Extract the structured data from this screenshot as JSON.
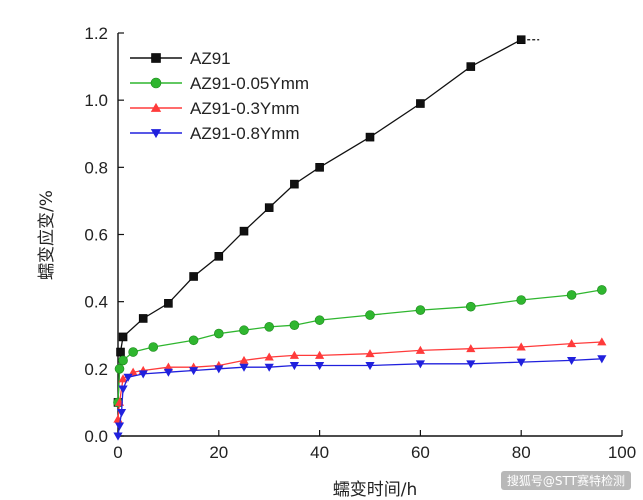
{
  "chart_data": {
    "type": "line",
    "title": "",
    "xlabel": "蠕变时间/h",
    "ylabel": "蠕变应变/%",
    "xlim": [
      0,
      100
    ],
    "ylim": [
      0,
      1.2
    ],
    "x_ticks": [
      0,
      20,
      40,
      60,
      80,
      100
    ],
    "y_ticks": [
      0.0,
      0.2,
      0.4,
      0.6,
      0.8,
      1.0,
      1.2
    ],
    "x_tick_labels": [
      "0",
      "20",
      "40",
      "60",
      "80",
      "100"
    ],
    "y_tick_labels": [
      "0.0",
      "0.2",
      "0.4",
      "0.6",
      "0.8",
      "1.0",
      "1.2"
    ],
    "grid": false,
    "legend_position": "top-left",
    "series": [
      {
        "name": "AZ91",
        "color": "#111111",
        "marker": "square",
        "x": [
          0,
          0.5,
          1,
          5,
          10,
          15,
          20,
          25,
          30,
          35,
          40,
          50,
          60,
          70,
          80
        ],
        "y": [
          0.1,
          0.25,
          0.295,
          0.35,
          0.395,
          0.475,
          0.535,
          0.61,
          0.68,
          0.75,
          0.8,
          0.89,
          0.99,
          1.1,
          1.18
        ]
      },
      {
        "name": "AZ91-0.05Ymm",
        "color": "#2fb62f",
        "marker": "circle",
        "x": [
          0,
          0.3,
          1,
          3,
          7,
          15,
          20,
          25,
          30,
          35,
          40,
          50,
          60,
          70,
          80,
          90,
          96
        ],
        "y": [
          0.1,
          0.2,
          0.225,
          0.25,
          0.265,
          0.285,
          0.305,
          0.315,
          0.325,
          0.33,
          0.345,
          0.36,
          0.375,
          0.385,
          0.405,
          0.42,
          0.435
        ]
      },
      {
        "name": "AZ91-0.3Ymm",
        "color": "#ff3b3b",
        "marker": "triangle-up",
        "x": [
          0,
          0.3,
          1,
          3,
          5,
          10,
          15,
          20,
          25,
          30,
          35,
          40,
          50,
          60,
          70,
          80,
          90,
          96
        ],
        "y": [
          0.05,
          0.1,
          0.17,
          0.19,
          0.195,
          0.205,
          0.205,
          0.21,
          0.225,
          0.235,
          0.24,
          0.24,
          0.245,
          0.255,
          0.26,
          0.265,
          0.275,
          0.28
        ]
      },
      {
        "name": "AZ91-0.8Ymm",
        "color": "#2020dd",
        "marker": "triangle-down",
        "x": [
          0,
          0.3,
          0.7,
          1,
          2,
          5,
          10,
          15,
          20,
          25,
          30,
          35,
          40,
          50,
          60,
          70,
          80,
          90,
          96
        ],
        "y": [
          0.0,
          0.03,
          0.07,
          0.14,
          0.175,
          0.185,
          0.19,
          0.195,
          0.2,
          0.205,
          0.205,
          0.21,
          0.21,
          0.21,
          0.215,
          0.215,
          0.22,
          0.225,
          0.23
        ]
      }
    ]
  },
  "watermark": "搜狐号@STT赛特检测"
}
